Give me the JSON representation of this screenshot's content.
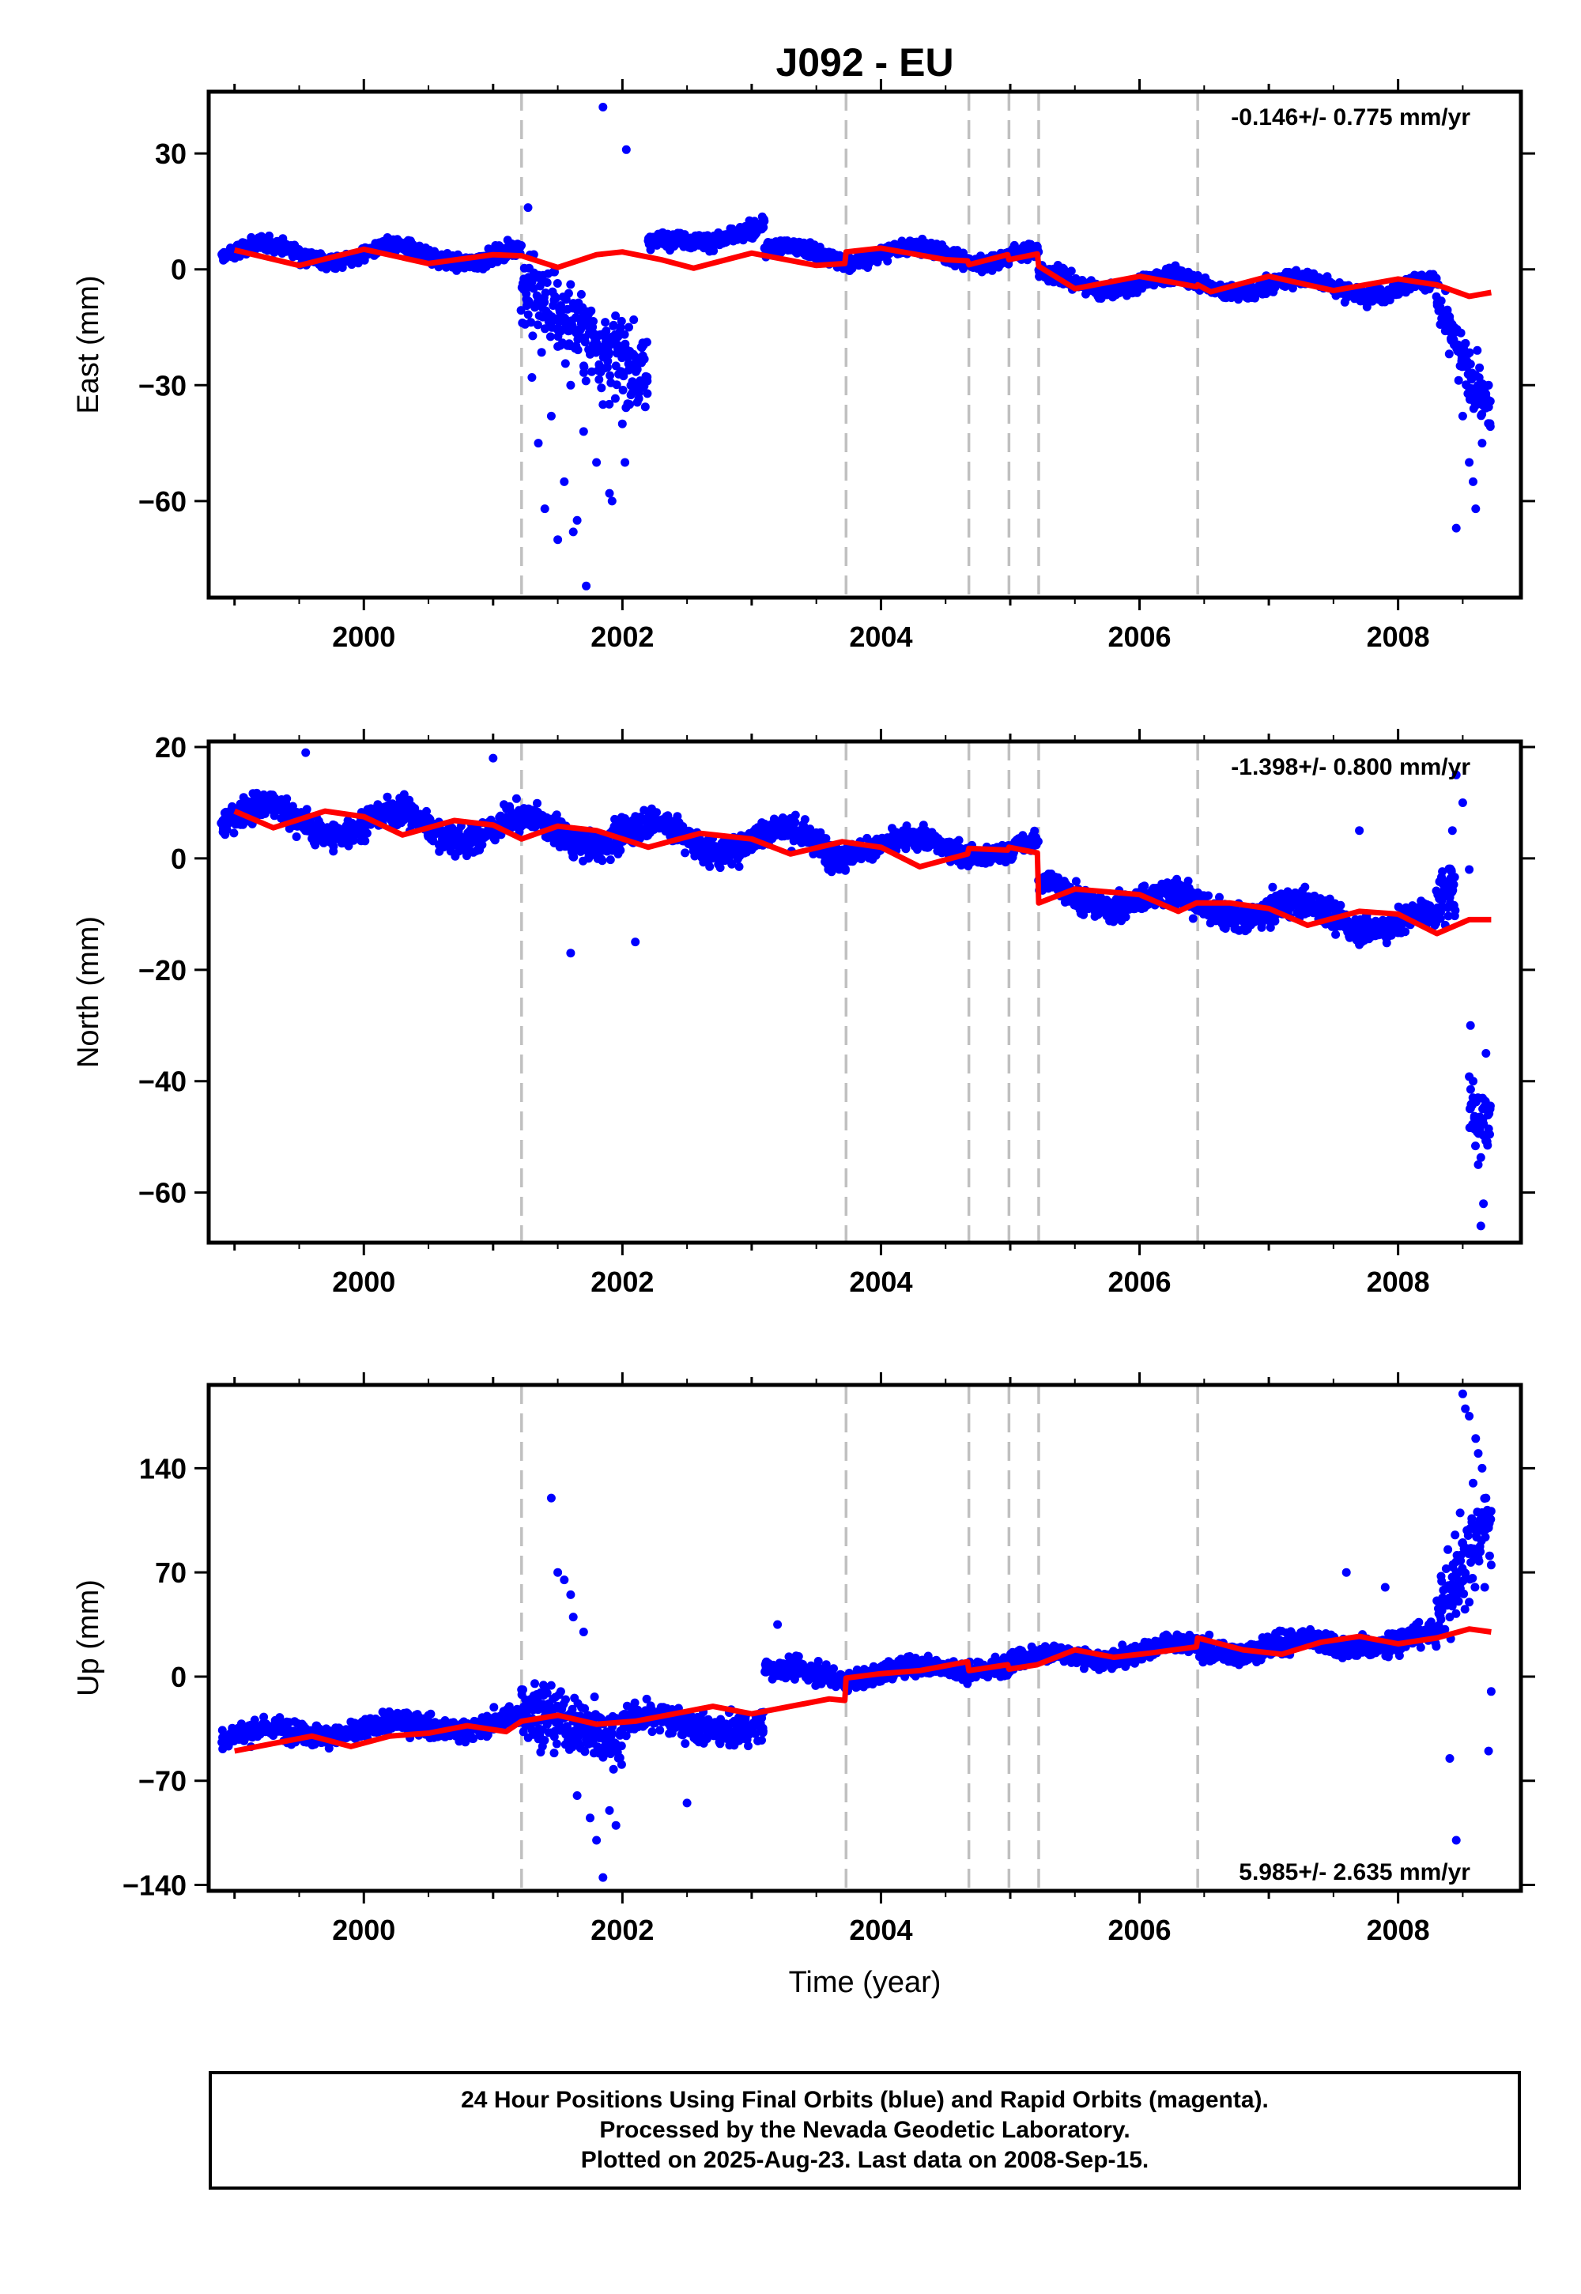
{
  "title": "J092 - EU",
  "xlabel": "Time (year)",
  "footer": {
    "line1": "24 Hour Positions Using Final Orbits (blue) and Rapid Orbits (magenta).",
    "line2": "Processed by the Nevada Geodetic Laboratory.",
    "line3": "Plotted on 2025-Aug-23. Last data on 2008-Sep-15."
  },
  "colors": {
    "data": "#0000ff",
    "model": "#ff0000",
    "breaks": "#c0c0c0",
    "axes": "#000000"
  },
  "chart_data": [
    {
      "type": "scatter",
      "name": "east",
      "ylabel": "East (mm)",
      "rate": "-0.146+/- 0.775 mm/yr",
      "rate_position": "top-right",
      "xlim": [
        1998.8,
        2008.95
      ],
      "ylim": [
        -85,
        46
      ],
      "yticks": [
        30,
        0,
        -30,
        -60
      ],
      "xticks": [
        2000,
        2002,
        2004,
        2006,
        2008
      ],
      "breaks": [
        2001.22,
        2003.73,
        2004.68,
        2004.99,
        2005.22,
        2006.45
      ],
      "scatter_points": [
        [
          2001.3,
          -28
        ],
        [
          2001.35,
          -45
        ],
        [
          2001.4,
          -62
        ],
        [
          2001.45,
          -38
        ],
        [
          2001.5,
          -20
        ],
        [
          2001.55,
          -55
        ],
        [
          2001.6,
          -30
        ],
        [
          2001.65,
          -65
        ],
        [
          2001.7,
          -42
        ],
        [
          2001.75,
          -22
        ],
        [
          2001.8,
          -50
        ],
        [
          2001.85,
          -35
        ],
        [
          2001.9,
          -58
        ],
        [
          2001.95,
          -25
        ],
        [
          2002.0,
          -40
        ],
        [
          2002.05,
          -15
        ],
        [
          2002.1,
          -30
        ],
        [
          2002.15,
          -20
        ],
        [
          2001.27,
          16
        ],
        [
          2001.5,
          -70
        ],
        [
          2001.62,
          -68
        ],
        [
          2001.72,
          -82
        ],
        [
          2001.92,
          -60
        ],
        [
          2002.02,
          -50
        ],
        [
          2001.85,
          42
        ],
        [
          2002.03,
          31
        ],
        [
          2008.45,
          -67
        ],
        [
          2008.6,
          -62
        ],
        [
          2008.55,
          -50
        ],
        [
          2008.5,
          -38
        ],
        [
          2008.65,
          -45
        ],
        [
          2008.7,
          -30
        ],
        [
          2008.48,
          -25
        ],
        [
          2008.58,
          -55
        ]
      ],
      "segments": [
        {
          "x": [
            1998.9,
            2001.22
          ],
          "trend": [
            4.5,
            3.5
          ],
          "amp": 2.2,
          "noise": 2.5
        },
        {
          "x": [
            2001.22,
            2002.2
          ],
          "trend": [
            -5,
            -28
          ],
          "amp": 0,
          "noise": 14
        },
        {
          "x": [
            2002.2,
            2003.1
          ],
          "trend": [
            6,
            11
          ],
          "amp": 1.5,
          "noise": 2.5
        },
        {
          "x": [
            2003.1,
            2004.68
          ],
          "trend": [
            4,
            4
          ],
          "amp": 2.2,
          "noise": 2.5
        },
        {
          "x": [
            2004.68,
            2005.22
          ],
          "trend": [
            3,
            4
          ],
          "amp": 1.5,
          "noise": 2.5
        },
        {
          "x": [
            2005.22,
            2008.3
          ],
          "trend": [
            -3,
            -5
          ],
          "amp": 2.2,
          "noise": 2.5
        },
        {
          "x": [
            2008.3,
            2008.72
          ],
          "trend": [
            -10,
            -38
          ],
          "amp": 0,
          "noise": 8
        }
      ],
      "model": [
        [
          1999.0,
          5
        ],
        [
          1999.5,
          1
        ],
        [
          2000.0,
          5.2
        ],
        [
          2000.5,
          1.5
        ],
        [
          2001.0,
          3.8
        ],
        [
          2001.22,
          3.5
        ],
        [
          2001.5,
          0.5
        ],
        [
          2001.8,
          3.8
        ],
        [
          2002.0,
          4.5
        ],
        [
          2002.3,
          2.5
        ],
        [
          2002.55,
          0.3
        ],
        [
          2003.0,
          4.2
        ],
        [
          2003.5,
          1
        ],
        [
          2003.72,
          1.5
        ],
        [
          2003.73,
          4.5
        ],
        [
          2004.0,
          5.5
        ],
        [
          2004.5,
          2.5
        ],
        [
          2004.67,
          2.2
        ],
        [
          2004.68,
          1.2
        ],
        [
          2004.98,
          3.8
        ],
        [
          2004.99,
          2.5
        ],
        [
          2005.21,
          4
        ],
        [
          2005.22,
          0.8
        ],
        [
          2005.5,
          -5
        ],
        [
          2006.0,
          -1.8
        ],
        [
          2006.44,
          -4.5
        ],
        [
          2006.45,
          -4
        ],
        [
          2006.55,
          -5.8
        ],
        [
          2007.0,
          -1.8
        ],
        [
          2007.5,
          -5.5
        ],
        [
          2008.0,
          -2.5
        ],
        [
          2008.3,
          -4
        ],
        [
          2008.55,
          -7
        ],
        [
          2008.72,
          -6
        ]
      ]
    },
    {
      "type": "scatter",
      "name": "north",
      "ylabel": "North (mm)",
      "rate": "-1.398+/- 0.800 mm/yr",
      "rate_position": "top-right",
      "xlim": [
        1998.8,
        2008.95
      ],
      "ylim": [
        -69,
        21
      ],
      "yticks": [
        20,
        0,
        -20,
        -40,
        -60
      ],
      "xticks": [
        2000,
        2002,
        2004,
        2006,
        2008
      ],
      "breaks": [
        2001.22,
        2003.73,
        2004.68,
        2004.99,
        2005.22,
        2006.45
      ],
      "scatter_points": [
        [
          2008.45,
          15
        ],
        [
          2008.5,
          10
        ],
        [
          2008.42,
          5
        ],
        [
          2008.55,
          -2
        ],
        [
          2008.6,
          -48
        ],
        [
          2008.62,
          -55
        ],
        [
          2008.66,
          -62
        ],
        [
          2008.58,
          -40
        ],
        [
          2008.68,
          -35
        ],
        [
          2008.64,
          -66
        ],
        [
          2008.7,
          -45
        ],
        [
          2008.56,
          -30
        ],
        [
          1999.55,
          19
        ],
        [
          2001.0,
          18
        ],
        [
          2001.6,
          -17
        ],
        [
          2002.1,
          -15
        ],
        [
          2007.7,
          5
        ]
      ],
      "segments": [
        {
          "x": [
            1998.9,
            2003.73
          ],
          "trend": [
            7.5,
            2.5
          ],
          "amp": 2.5,
          "noise": 3.2
        },
        {
          "x": [
            2003.73,
            2005.22
          ],
          "trend": [
            2.5,
            1.5
          ],
          "amp": 1.5,
          "noise": 2.2
        },
        {
          "x": [
            2005.22,
            2008.3
          ],
          "trend": [
            -6,
            -12
          ],
          "amp": 2,
          "noise": 3
        },
        {
          "x": [
            2008.3,
            2008.45
          ],
          "trend": [
            -8,
            -5
          ],
          "amp": 0,
          "noise": 6
        },
        {
          "x": [
            2008.55,
            2008.72
          ],
          "trend": [
            -45,
            -48
          ],
          "amp": 0,
          "noise": 8
        }
      ],
      "model": [
        [
          1999.0,
          8.5
        ],
        [
          1999.3,
          5.5
        ],
        [
          1999.7,
          8.5
        ],
        [
          2000.0,
          7.5
        ],
        [
          2000.3,
          4.2
        ],
        [
          2000.7,
          6.8
        ],
        [
          2001.0,
          6
        ],
        [
          2001.22,
          3.5
        ],
        [
          2001.5,
          5.8
        ],
        [
          2001.8,
          5
        ],
        [
          2002.2,
          2
        ],
        [
          2002.6,
          4.5
        ],
        [
          2003.0,
          3.5
        ],
        [
          2003.3,
          0.8
        ],
        [
          2003.7,
          3
        ],
        [
          2004.0,
          2
        ],
        [
          2004.3,
          -1.5
        ],
        [
          2004.67,
          0.8
        ],
        [
          2004.68,
          1.8
        ],
        [
          2004.98,
          1.5
        ],
        [
          2004.99,
          2
        ],
        [
          2005.21,
          1
        ],
        [
          2005.22,
          -8
        ],
        [
          2005.5,
          -5.5
        ],
        [
          2006.0,
          -6.5
        ],
        [
          2006.3,
          -9.5
        ],
        [
          2006.44,
          -8
        ],
        [
          2006.7,
          -8
        ],
        [
          2007.0,
          -9
        ],
        [
          2007.3,
          -12
        ],
        [
          2007.7,
          -9.5
        ],
        [
          2008.0,
          -10
        ],
        [
          2008.3,
          -13.5
        ],
        [
          2008.55,
          -11
        ],
        [
          2008.72,
          -11
        ]
      ]
    },
    {
      "type": "scatter",
      "name": "up",
      "ylabel": "Up (mm)",
      "rate": "5.985+/- 2.635 mm/yr",
      "rate_position": "bottom-right",
      "xlim": [
        1998.8,
        2008.95
      ],
      "ylim": [
        -144,
        196
      ],
      "yticks": [
        140,
        70,
        0,
        -70,
        -140
      ],
      "xticks": [
        2000,
        2002,
        2004,
        2006,
        2008
      ],
      "breaks": [
        2001.22,
        2003.73,
        2004.68,
        2004.99,
        2005.22,
        2006.45
      ],
      "scatter_points": [
        [
          2001.45,
          120
        ],
        [
          2001.55,
          65
        ],
        [
          2001.62,
          40
        ],
        [
          2001.7,
          30
        ],
        [
          2001.5,
          70
        ],
        [
          2001.6,
          55
        ],
        [
          2001.75,
          -95
        ],
        [
          2001.8,
          -110
        ],
        [
          2001.85,
          -135
        ],
        [
          2001.9,
          -90
        ],
        [
          2001.95,
          -100
        ],
        [
          2001.65,
          -80
        ],
        [
          2002.5,
          -85
        ],
        [
          2003.2,
          35
        ],
        [
          2007.6,
          70
        ],
        [
          2007.9,
          60
        ],
        [
          2008.4,
          -55
        ],
        [
          2008.45,
          -110
        ],
        [
          2008.7,
          -50
        ],
        [
          2008.72,
          -10
        ],
        [
          2008.5,
          190
        ],
        [
          2008.52,
          180
        ],
        [
          2008.55,
          175
        ],
        [
          2008.6,
          160
        ],
        [
          2008.62,
          150
        ],
        [
          2008.65,
          140
        ],
        [
          2008.58,
          130
        ],
        [
          2008.68,
          120
        ],
        [
          2008.48,
          110
        ],
        [
          2008.7,
          100
        ],
        [
          2008.5,
          90
        ],
        [
          2008.6,
          80
        ],
        [
          2008.45,
          70
        ],
        [
          2008.67,
          60
        ],
        [
          2008.55,
          50
        ],
        [
          2008.4,
          40
        ],
        [
          2008.72,
          75
        ]
      ],
      "segments": [
        {
          "x": [
            1998.9,
            2001.22
          ],
          "trend": [
            -40,
            -30
          ],
          "amp": 4,
          "noise": 9
        },
        {
          "x": [
            2001.22,
            2002.0
          ],
          "trend": [
            -20,
            -45
          ],
          "amp": 0,
          "noise": 25
        },
        {
          "x": [
            2002.0,
            2003.1
          ],
          "trend": [
            -30,
            -35
          ],
          "amp": 4,
          "noise": 12
        },
        {
          "x": [
            2003.1,
            2003.73
          ],
          "trend": [
            2,
            2
          ],
          "amp": 4,
          "noise": 9
        },
        {
          "x": [
            2003.73,
            2006.45
          ],
          "trend": [
            0,
            20
          ],
          "amp": 4,
          "noise": 8
        },
        {
          "x": [
            2006.45,
            2008.3
          ],
          "trend": [
            18,
            25
          ],
          "amp": 4,
          "noise": 9
        },
        {
          "x": [
            2008.3,
            2008.72
          ],
          "trend": [
            40,
            110
          ],
          "amp": 0,
          "noise": 30
        }
      ],
      "model": [
        [
          1999.0,
          -50
        ],
        [
          1999.3,
          -45
        ],
        [
          1999.6,
          -40
        ],
        [
          1999.9,
          -47
        ],
        [
          2000.2,
          -40
        ],
        [
          2000.5,
          -38
        ],
        [
          2000.8,
          -33
        ],
        [
          2001.1,
          -37
        ],
        [
          2001.22,
          -30
        ],
        [
          2001.5,
          -26
        ],
        [
          2001.8,
          -32
        ],
        [
          2002.1,
          -30
        ],
        [
          2002.4,
          -25
        ],
        [
          2002.7,
          -20
        ],
        [
          2003.0,
          -25
        ],
        [
          2003.3,
          -20
        ],
        [
          2003.6,
          -15
        ],
        [
          2003.72,
          -16
        ],
        [
          2003.73,
          -1
        ],
        [
          2004.0,
          2
        ],
        [
          2004.3,
          4
        ],
        [
          2004.67,
          10
        ],
        [
          2004.68,
          4
        ],
        [
          2004.98,
          8
        ],
        [
          2004.99,
          5
        ],
        [
          2005.21,
          8
        ],
        [
          2005.5,
          18
        ],
        [
          2005.8,
          13
        ],
        [
          2006.1,
          16
        ],
        [
          2006.44,
          20
        ],
        [
          2006.45,
          26
        ],
        [
          2006.8,
          18
        ],
        [
          2007.1,
          15
        ],
        [
          2007.4,
          23
        ],
        [
          2007.7,
          27
        ],
        [
          2008.0,
          22
        ],
        [
          2008.3,
          26
        ],
        [
          2008.55,
          32
        ],
        [
          2008.72,
          30
        ]
      ]
    }
  ]
}
